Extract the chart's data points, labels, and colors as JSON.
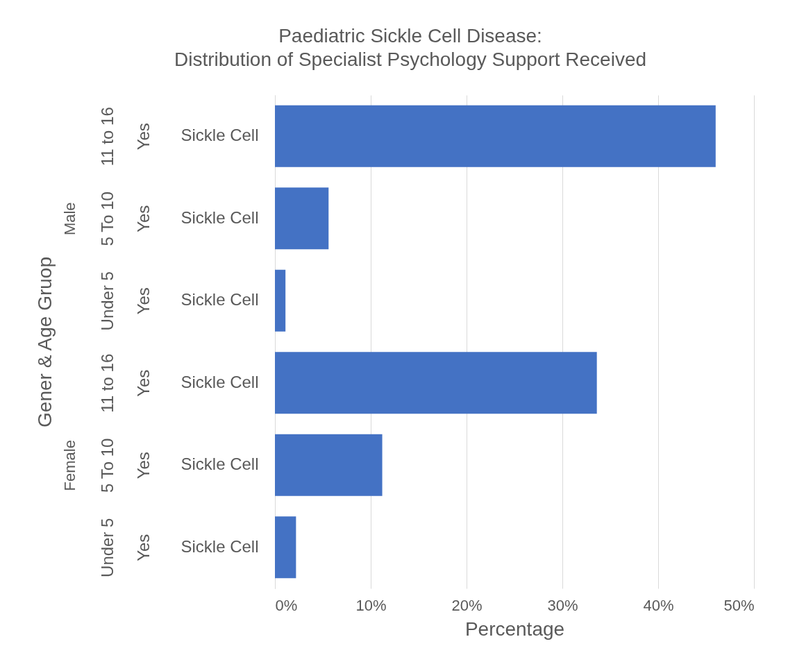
{
  "chart_data": {
    "type": "bar",
    "orientation": "horizontal",
    "title": "Paediatric Sickle Cell Disease:\nDistribution of Specialist Psychology Support Received",
    "xlabel": "Percentage",
    "categories": [
      "Sickle Cell",
      "Sickle Cell",
      "Sickle Cell",
      "Sickle Cell",
      "Sickle Cell",
      "Sickle Cell"
    ],
    "values": [
      46.0,
      5.6,
      1.1,
      33.6,
      11.2,
      2.2
    ],
    "color": "#4472c4",
    "annotations": [
      "Gener & Age Gruop",
      "11 to 16",
      "Yes",
      "5 To 10",
      "Yes",
      "Under 5",
      "Yes",
      "11 to 16",
      "Yes",
      "5 To 10",
      "Yes",
      "Under 5",
      "Yes",
      "Male",
      "Female"
    ],
    "xlim": [
      0,
      50
    ],
    "xticks": [
      {
        "value": 0,
        "label": "0%"
      },
      {
        "value": 10,
        "label": "10%"
      },
      {
        "value": 20,
        "label": "20%"
      },
      {
        "value": 30,
        "label": "30%"
      },
      {
        "value": 40,
        "label": "40%"
      },
      {
        "value": 50,
        "label": "50%"
      }
    ],
    "grid": "x"
  }
}
